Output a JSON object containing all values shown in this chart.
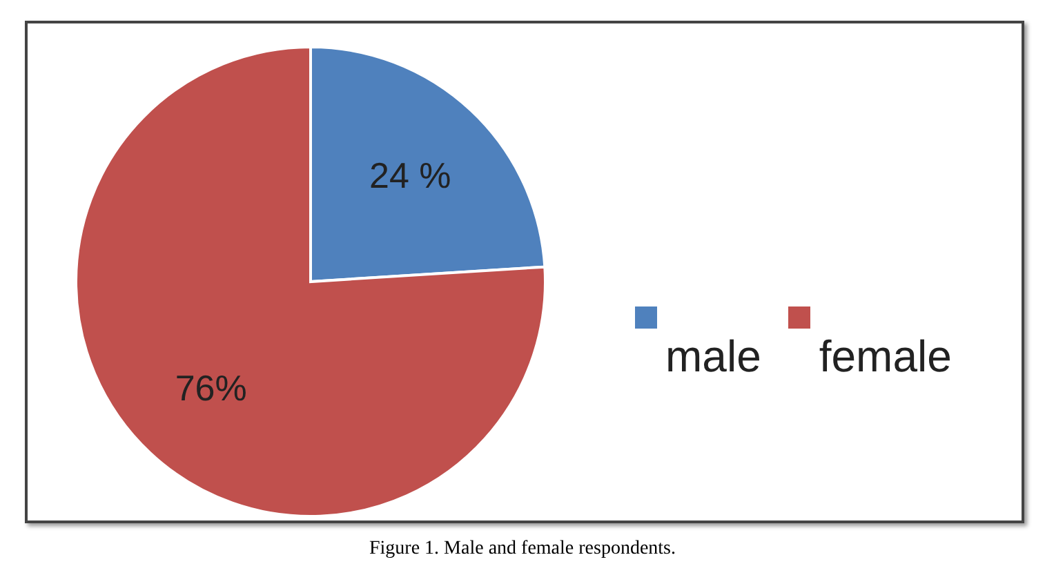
{
  "chart_data": {
    "type": "pie",
    "categories": [
      "male",
      "female"
    ],
    "values": [
      24,
      76
    ],
    "colors": [
      "#4f81bd",
      "#c0504d"
    ],
    "value_labels": [
      "24 %",
      "76%"
    ],
    "legend": "right",
    "annotations": [
      "Figure 1. Male and female respondents."
    ]
  }
}
